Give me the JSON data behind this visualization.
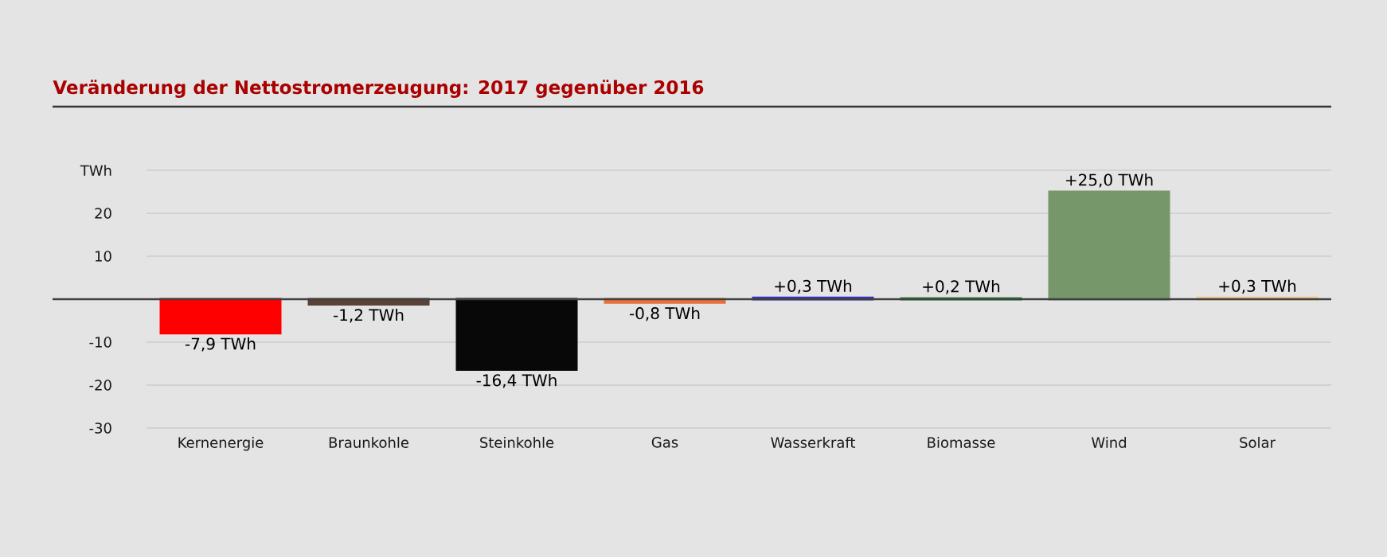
{
  "chart_data": {
    "type": "bar",
    "title": "Veränderung der Nettostromerzeugung: 2017 gegenüber 2016",
    "categories": [
      "Kernenergie",
      "Braunkohle",
      "Steinkohle",
      "Gas",
      "Wasserkraft",
      "Biomasse",
      "Wind",
      "Solar"
    ],
    "values": [
      -7.9,
      -1.2,
      -16.4,
      -0.8,
      0.3,
      0.2,
      25.0,
      0.3
    ],
    "colors": [
      "#ff0000",
      "#5a4236",
      "#080808",
      "#e8703a",
      "#3030c8",
      "#2e8a3e",
      "#76976a",
      "#f0c890"
    ],
    "value_labels": [
      "-7,9 TWh",
      "-1,2 TWh",
      "-16,4 TWh",
      "-0,8 TWh",
      "+0,3 TWh",
      "+0,2 TWh",
      "+25,0 TWh",
      "+0,3 TWh"
    ],
    "ylim": [
      -30,
      30
    ],
    "yticks": [
      -30,
      -20,
      -10,
      10,
      20,
      {
        "value": 30,
        "label": "TWh"
      }
    ],
    "grid": "y"
  }
}
